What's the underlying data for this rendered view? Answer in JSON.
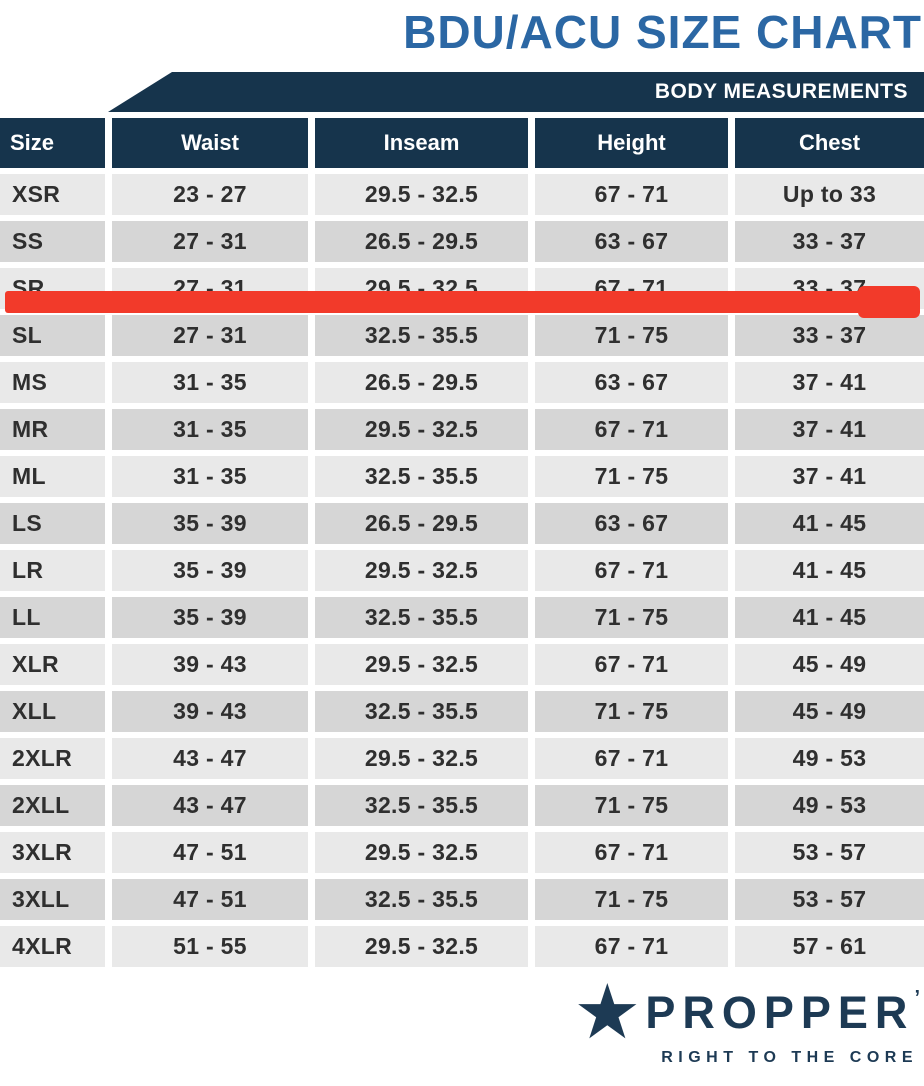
{
  "title": "BDU/ACU SIZE CHART",
  "banner": {
    "label": "BODY MEASUREMENTS"
  },
  "chart_data": {
    "type": "table",
    "title": "BDU/ACU SIZE CHART",
    "group_header": "BODY MEASUREMENTS",
    "columns": [
      "Size",
      "Waist",
      "Inseam",
      "Height",
      "Chest"
    ],
    "rows": [
      [
        "XSR",
        "23 - 27",
        "29.5 - 32.5",
        "67 - 71",
        "Up to 33"
      ],
      [
        "SS",
        "27 - 31",
        "26.5 - 29.5",
        "63 - 67",
        "33 - 37"
      ],
      [
        "SR",
        "27 - 31",
        "29.5 - 32.5",
        "67 - 71",
        "33 - 37"
      ],
      [
        "SL",
        "27 - 31",
        "32.5 - 35.5",
        "71 - 75",
        "33 - 37"
      ],
      [
        "MS",
        "31 - 35",
        "26.5 - 29.5",
        "63 - 67",
        "37 - 41"
      ],
      [
        "MR",
        "31 - 35",
        "29.5 - 32.5",
        "67 - 71",
        "37 - 41"
      ],
      [
        "ML",
        "31 - 35",
        "32.5 - 35.5",
        "71 - 75",
        "37 - 41"
      ],
      [
        "LS",
        "35 - 39",
        "26.5 - 29.5",
        "63 - 67",
        "41 - 45"
      ],
      [
        "LR",
        "35 - 39",
        "29.5 - 32.5",
        "67 - 71",
        "41 - 45"
      ],
      [
        "LL",
        "35 - 39",
        "32.5 - 35.5",
        "71 - 75",
        "41 - 45"
      ],
      [
        "XLR",
        "39 - 43",
        "29.5 - 32.5",
        "67 - 71",
        "45 - 49"
      ],
      [
        "XLL",
        "39 - 43",
        "32.5 - 35.5",
        "71 - 75",
        "45 - 49"
      ],
      [
        "2XLR",
        "43 - 47",
        "29.5 - 32.5",
        "67 - 71",
        "49 - 53"
      ],
      [
        "2XLL",
        "43 - 47",
        "32.5 - 35.5",
        "71 - 75",
        "49 - 53"
      ],
      [
        "3XLR",
        "47 - 51",
        "29.5 - 32.5",
        "67 - 71",
        "53 - 57"
      ],
      [
        "3XLL",
        "47 - 51",
        "32.5 - 35.5",
        "71 - 75",
        "53 - 57"
      ],
      [
        "4XLR",
        "51 - 55",
        "29.5 - 32.5",
        "67 - 71",
        "57 - 61"
      ]
    ],
    "highlighted_row": "SR",
    "highlight_color": "#f23a2a"
  },
  "logo": {
    "star": "★",
    "brand": "PROPPER",
    "mark": "’",
    "tagline": "RIGHT TO THE CORE"
  },
  "colors": {
    "title_blue": "#2b67a4",
    "header_navy": "#16344c",
    "row_light": "#e9e9e9",
    "row_dark": "#d6d6d6",
    "highlight_red": "#f23a2a",
    "logo_navy": "#1d3a54"
  }
}
